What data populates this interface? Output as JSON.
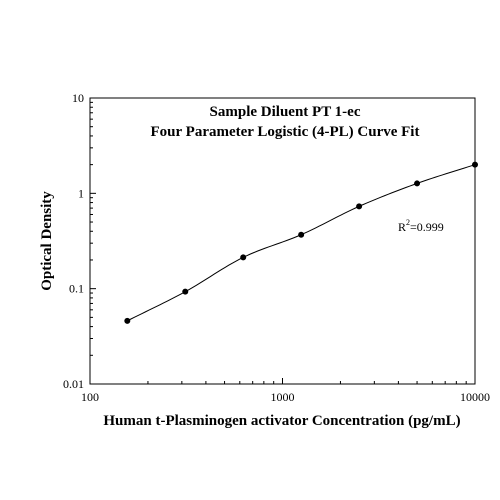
{
  "chart_data": {
    "type": "scatter",
    "title": "Sample Diluent PT 1-ec",
    "subtitle": "Four Parameter Logistic (4-PL) Curve Fit",
    "xlabel": "Human t-Plasminogen activator Concentration (pg/mL)",
    "ylabel": "Optical Density",
    "x_scale": "log",
    "y_scale": "log",
    "xlim": [
      100,
      10000
    ],
    "ylim": [
      0.01,
      10
    ],
    "x_ticks": [
      "100",
      "1000",
      "10000"
    ],
    "y_ticks": [
      "0.01",
      "0.1",
      "1",
      "10"
    ],
    "grid": false,
    "series": [
      {
        "x": [
          156.25,
          312.5,
          625,
          1250,
          2500,
          5000,
          10000
        ],
        "y": [
          0.046,
          0.093,
          0.213,
          0.368,
          0.73,
          1.27,
          2.0
        ],
        "fit": "4PL"
      }
    ],
    "annotation": {
      "prefix": "R",
      "superscript": "2",
      "value": "=0.999"
    }
  }
}
